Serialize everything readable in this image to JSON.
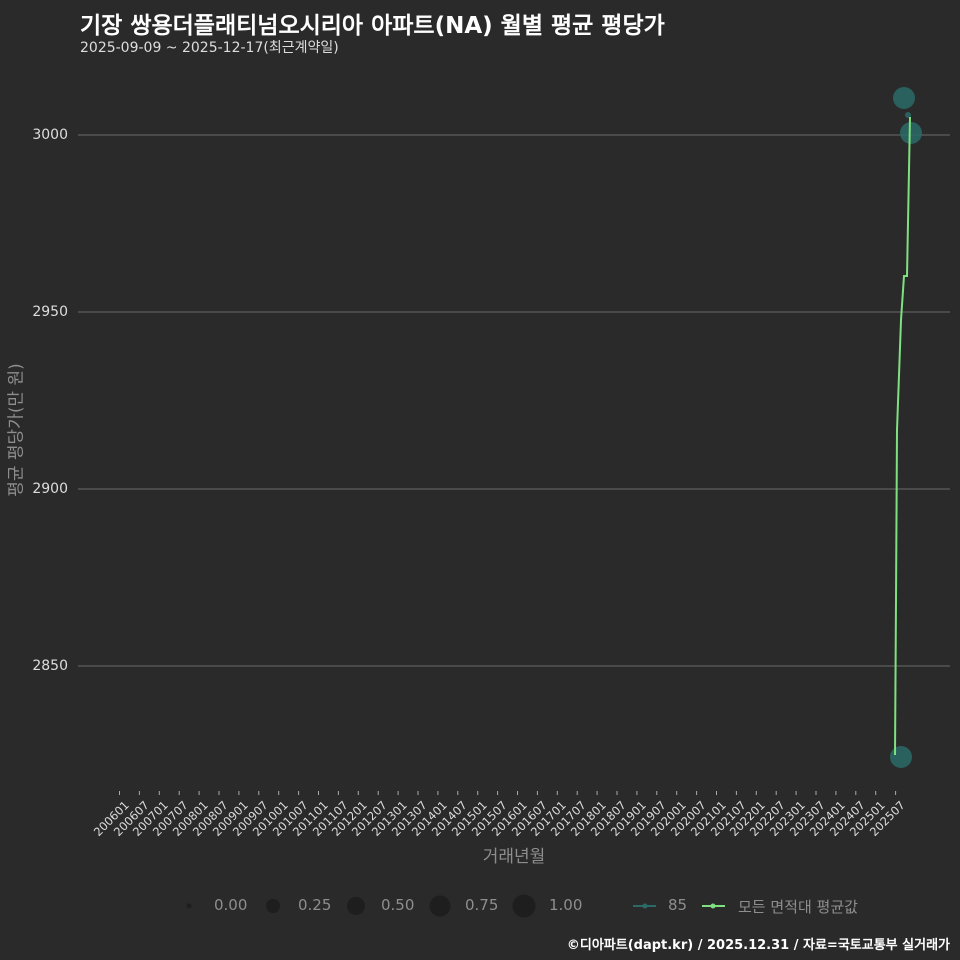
{
  "header": {
    "title": "기장 쌍용더플래티넘오시리아 아파트(NA) 월별 평균 평당가",
    "subtitle": "2025-09-09 ~ 2025-12-17(최근계약일)"
  },
  "axes": {
    "ylabel": "평균 평당가(만 원)",
    "xlabel": "거래년월",
    "yticks": [
      "3000",
      "2950",
      "2900",
      "2850"
    ],
    "xticks": [
      "200601",
      "200607",
      "200701",
      "200707",
      "200801",
      "200807",
      "200901",
      "200907",
      "201001",
      "201007",
      "201101",
      "201107",
      "201201",
      "201207",
      "201301",
      "201307",
      "201401",
      "201407",
      "201501",
      "201507",
      "201601",
      "201607",
      "201701",
      "201707",
      "201801",
      "201807",
      "201901",
      "201907",
      "202001",
      "202007",
      "202101",
      "202107",
      "202201",
      "202207",
      "202301",
      "202307",
      "202401",
      "202407",
      "202501",
      "202507"
    ]
  },
  "legend": {
    "size_items": [
      "0.00",
      "0.25",
      "0.50",
      "0.75",
      "1.00"
    ],
    "series_items": [
      "85",
      "모든 면적대 평균값"
    ]
  },
  "footer": {
    "credit": "©디아파트(dapt.kr) / 2025.12.31 / 자료=국토교통부 실거래가"
  },
  "colors": {
    "background": "#2a2a2b",
    "series_85": "#2a6b67",
    "series_avg": "#7ee07e",
    "grid": "#707070"
  },
  "chart_data": {
    "type": "line",
    "title": "기장 쌍용더플래티넘오시리아 아파트(NA) 월별 평균 평당가",
    "subtitle": "2025-09-09 ~ 2025-12-17(최근계약일)",
    "xlabel": "거래년월",
    "ylabel": "평균 평당가(만 원)",
    "ylim": [
      2812,
      3020
    ],
    "yticks": [
      2850,
      2900,
      2950,
      3000
    ],
    "grid": true,
    "legend_position": "bottom",
    "x": [
      "202509",
      "202510",
      "202511",
      "202512"
    ],
    "series": [
      {
        "name": "85",
        "type": "scatter",
        "values": [
          2824,
          3010,
          3006,
          3001
        ],
        "marker_size_scale": [
          0.5,
          0.5,
          0.05,
          0.5
        ]
      },
      {
        "name": "모든 면적대 평균값",
        "type": "line",
        "values": [
          2824,
          2945,
          2960,
          3006
        ]
      }
    ]
  }
}
